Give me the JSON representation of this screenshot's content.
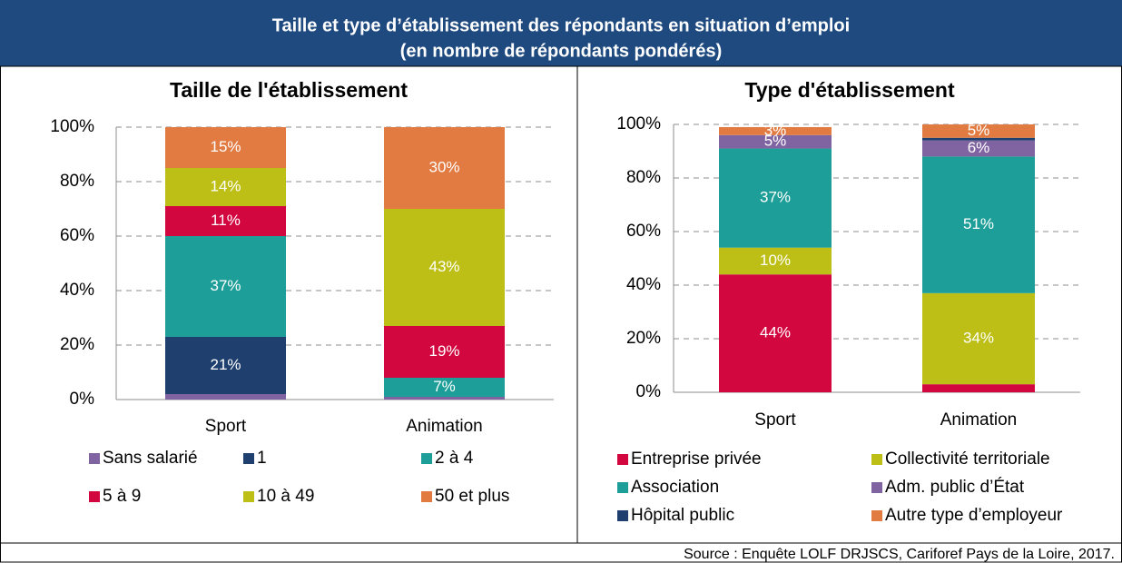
{
  "header": {
    "title": "Taille et type d’établissement des répondants en situation d’emploi",
    "subtitle": "(en nombre de répondants pondérés)"
  },
  "source": "Source : Enquête LOLF DRJSCS, Cariforef Pays de la Loire, 2017.",
  "chart_data": [
    {
      "type": "stacked_bar",
      "title": "Taille de l'établissement",
      "categories": [
        "Sport",
        "Animation"
      ],
      "ylim": [
        0,
        100
      ],
      "yticks": [
        {
          "value": 0,
          "label": "0%"
        },
        {
          "value": 20,
          "label": "20%"
        },
        {
          "value": 40,
          "label": "40%"
        },
        {
          "value": 60,
          "label": "60%"
        },
        {
          "value": 80,
          "label": "80%"
        },
        {
          "value": 100,
          "label": "100%"
        }
      ],
      "grid": true,
      "series": [
        {
          "name": "Sans salarié",
          "color": "#8064a2",
          "values": [
            2,
            1
          ],
          "value_labels": [
            null,
            null
          ]
        },
        {
          "name": "1",
          "color": "#1f3f6e",
          "values": [
            21,
            0
          ],
          "value_labels": [
            "21%",
            null
          ]
        },
        {
          "name": "2 à 4",
          "color": "#1d9e98",
          "values": [
            37,
            7
          ],
          "value_labels": [
            "37%",
            "7%"
          ]
        },
        {
          "name": "5 à 9",
          "color": "#d2073f",
          "values": [
            11,
            19
          ],
          "value_labels": [
            "11%",
            "19%"
          ]
        },
        {
          "name": "10 à 49",
          "color": "#bdbf17",
          "values": [
            14,
            43
          ],
          "value_labels": [
            "14%",
            "43%"
          ]
        },
        {
          "name": "50 et plus",
          "color": "#e17b41",
          "values": [
            15,
            30
          ],
          "value_labels": [
            "15%",
            "30%"
          ]
        }
      ]
    },
    {
      "type": "stacked_bar",
      "title": "Type d'établissement",
      "categories": [
        "Sport",
        "Animation"
      ],
      "ylim": [
        0,
        100
      ],
      "yticks": [
        {
          "value": 0,
          "label": "0%"
        },
        {
          "value": 20,
          "label": "20%"
        },
        {
          "value": 40,
          "label": "40%"
        },
        {
          "value": 60,
          "label": "60%"
        },
        {
          "value": 80,
          "label": "80%"
        },
        {
          "value": 100,
          "label": "100%"
        }
      ],
      "grid": true,
      "series": [
        {
          "name": "Entreprise privée",
          "color": "#d2073f",
          "values": [
            44,
            3
          ],
          "value_labels": [
            "44%",
            null
          ]
        },
        {
          "name": "Collectivité territoriale",
          "color": "#bdbf17",
          "values": [
            10,
            34
          ],
          "value_labels": [
            "10%",
            "34%"
          ]
        },
        {
          "name": "Association",
          "color": "#1d9e98",
          "values": [
            37,
            51
          ],
          "value_labels": [
            "37%",
            "51%"
          ]
        },
        {
          "name": "Adm. public d’État",
          "color": "#8064a2",
          "values": [
            5,
            6
          ],
          "value_labels": [
            "5%",
            "6%"
          ]
        },
        {
          "name": "Hôpital public",
          "color": "#1f3f6e",
          "values": [
            0,
            1
          ],
          "value_labels": [
            null,
            null
          ]
        },
        {
          "name": "Autre type d’employeur",
          "color": "#e17b41",
          "values": [
            3,
            5
          ],
          "value_labels": [
            "3%",
            "5%"
          ]
        }
      ]
    }
  ]
}
